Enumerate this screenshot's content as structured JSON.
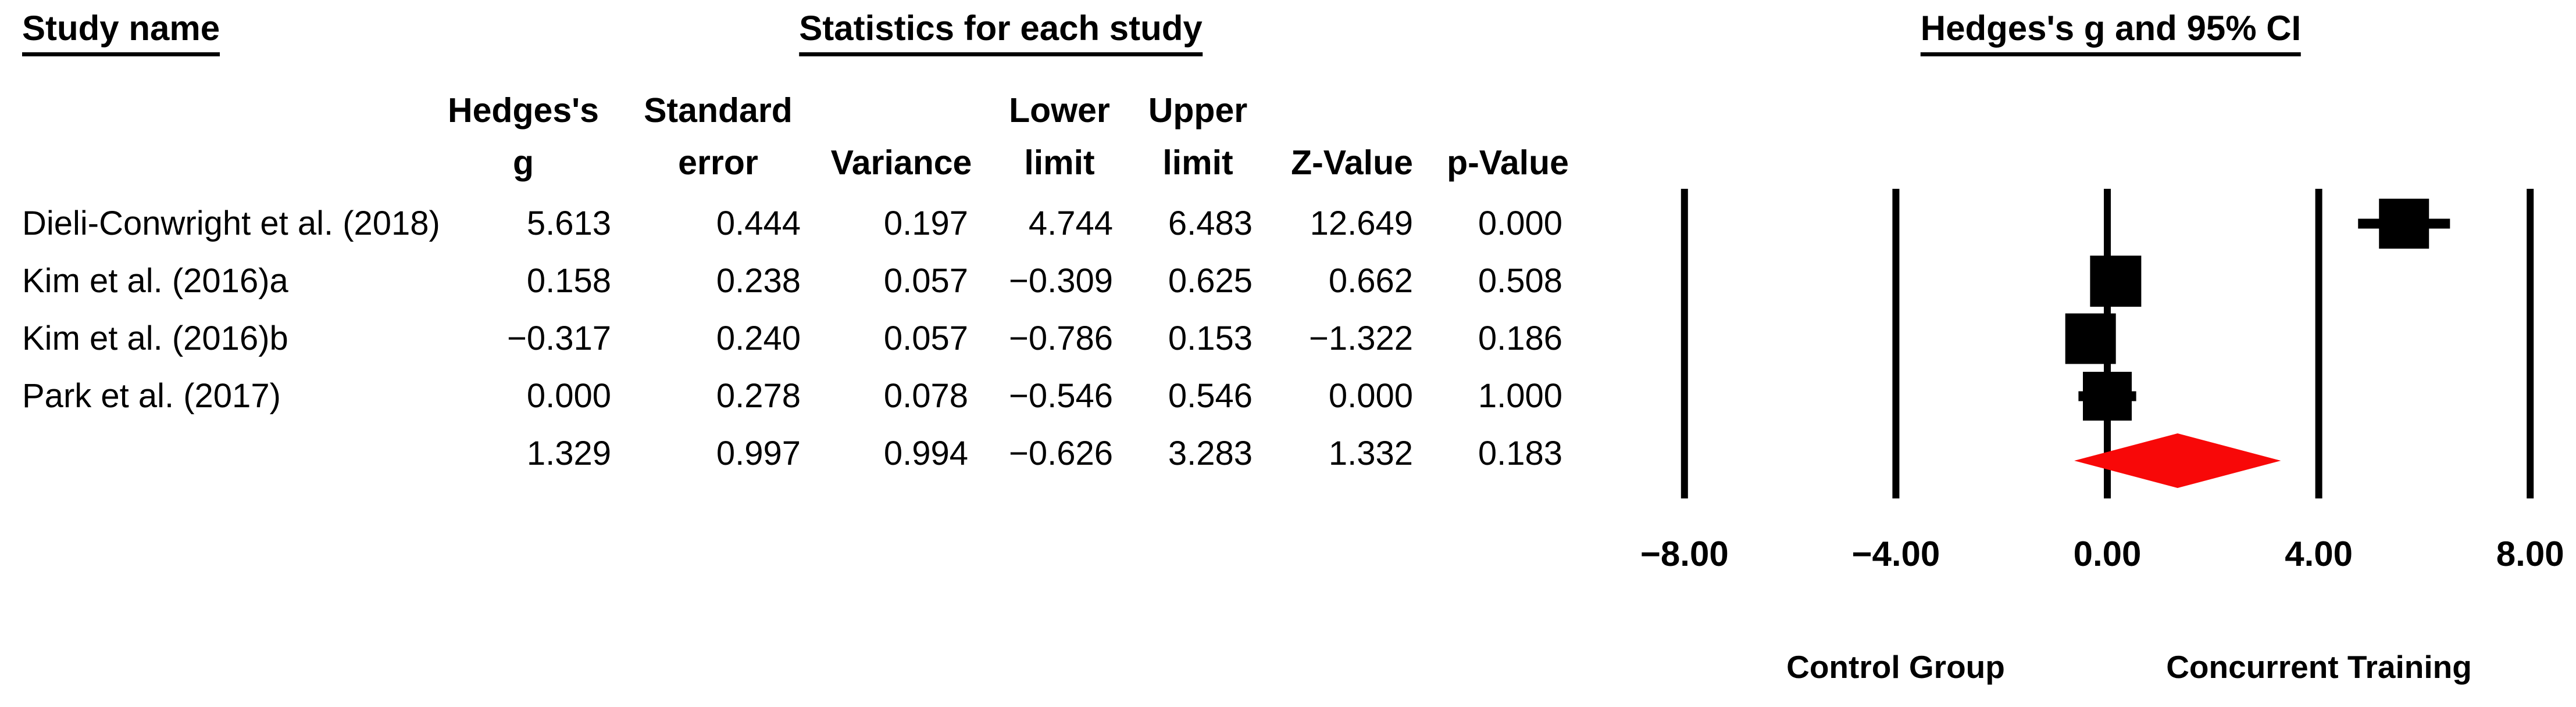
{
  "figure": {
    "headers": {
      "study_name": "Study name",
      "statistics": "Statistics for each study",
      "plot": "Hedges's g and 95% CI"
    },
    "columns": {
      "g_line1": "Hedges's",
      "g_line2": "g",
      "se_line1": "Standard",
      "se_line2": "error",
      "variance": "Variance",
      "ll_line1": "Lower",
      "ll_line2": "limit",
      "ul_line1": "Upper",
      "ul_line2": "limit",
      "z": "Z-Value",
      "p": "p-Value"
    },
    "rows": [
      {
        "study": "Dieli-Conwright et al. (2018)",
        "g": "5.613",
        "se": "0.444",
        "variance": "0.197",
        "ll": "4.744",
        "ul": "6.483",
        "z": "12.649",
        "p": "0.000"
      },
      {
        "study": "Kim et al. (2016)a",
        "g": "0.158",
        "se": "0.238",
        "variance": "0.057",
        "ll": "−0.309",
        "ul": "0.625",
        "z": "0.662",
        "p": "0.508"
      },
      {
        "study": "Kim et al. (2016)b",
        "g": "−0.317",
        "se": "0.240",
        "variance": "0.057",
        "ll": "−0.786",
        "ul": "0.153",
        "z": "−1.322",
        "p": "0.186"
      },
      {
        "study": "Park et al. (2017)",
        "g": "0.000",
        "se": "0.278",
        "variance": "0.078",
        "ll": "−0.546",
        "ul": "0.546",
        "z": "0.000",
        "p": "1.000"
      },
      {
        "study": "",
        "g": "1.329",
        "se": "0.997",
        "variance": "0.994",
        "ll": "−0.626",
        "ul": "3.283",
        "z": "1.332",
        "p": "0.183"
      }
    ]
  },
  "chart_data": {
    "type": "forest",
    "title": "Hedges's g and 95% CI",
    "effect_measure": "Hedges's g",
    "xlim": [
      -8,
      8
    ],
    "x_ticks": [
      -8,
      -4,
      0,
      4,
      8
    ],
    "x_tick_labels": [
      "−8.00",
      "−4.00",
      "0.00",
      "4.00",
      "8.00"
    ],
    "axis_label_left": "Control Group",
    "axis_label_right": "Concurrent Training",
    "grid": "vertical-gridlines-only",
    "legend": "none",
    "marker_color": "#000000",
    "summary_color": "#f80808",
    "studies": [
      {
        "name": "Dieli-Conwright et al. (2018)",
        "g": 5.613,
        "lower": 4.744,
        "upper": 6.483
      },
      {
        "name": "Kim et al. (2016)a",
        "g": 0.158,
        "lower": -0.309,
        "upper": 0.625
      },
      {
        "name": "Kim et al. (2016)b",
        "g": -0.317,
        "lower": -0.786,
        "upper": 0.153
      },
      {
        "name": "Park et al. (2017)",
        "g": 0.0,
        "lower": -0.546,
        "upper": 0.546
      }
    ],
    "summary": {
      "g": 1.329,
      "lower": -0.626,
      "upper": 3.283
    }
  }
}
